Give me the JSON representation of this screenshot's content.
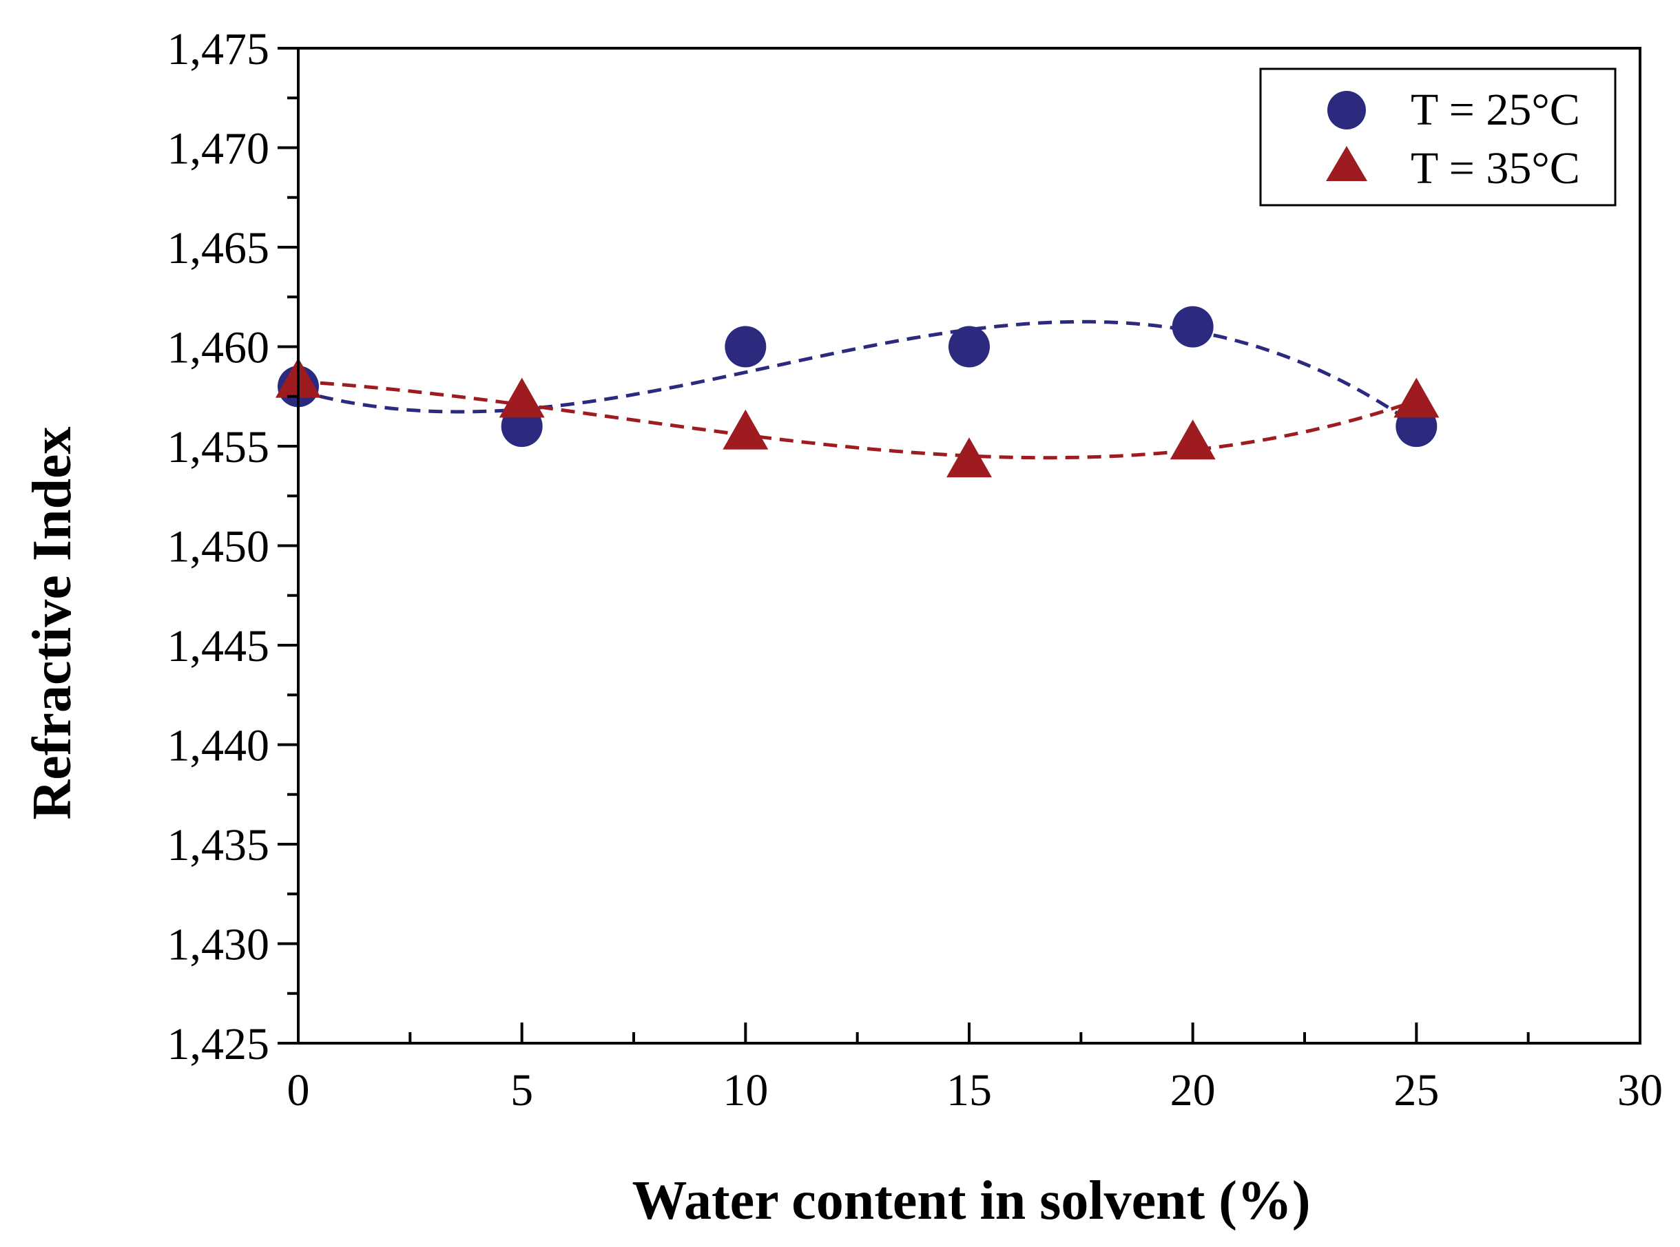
{
  "chart_data": {
    "type": "scatter",
    "title": "",
    "xlabel": "Water content in solvent (%)",
    "ylabel": "Refractive Index",
    "xlim": [
      0,
      30
    ],
    "ylim": [
      1.425,
      1.475
    ],
    "x_ticks": [
      0,
      5,
      10,
      15,
      20,
      25,
      30
    ],
    "x_tick_labels": [
      "0",
      "5",
      "10",
      "15",
      "20",
      "25",
      "30"
    ],
    "y_ticks": [
      1.425,
      1.43,
      1.435,
      1.44,
      1.445,
      1.45,
      1.455,
      1.46,
      1.465,
      1.47,
      1.475
    ],
    "y_tick_labels": [
      "1,425",
      "1,430",
      "1,435",
      "1,440",
      "1,445",
      "1,450",
      "1,455",
      "1,460",
      "1,465",
      "1,470",
      "1,475"
    ],
    "grid": false,
    "legend_position": "top-right",
    "series": [
      {
        "name": "T = 25°C",
        "marker": "circle",
        "color": "#2b2a7e",
        "x": [
          0,
          5,
          10,
          15,
          20,
          25
        ],
        "y": [
          1.458,
          1.456,
          1.46,
          1.46,
          1.461,
          1.456
        ],
        "fit": "dashed polynomial"
      },
      {
        "name": "T = 35°C",
        "marker": "triangle",
        "color": "#9e1c20",
        "x": [
          0,
          5,
          10,
          15,
          20,
          25
        ],
        "y": [
          1.4582,
          1.4572,
          1.4556,
          1.4542,
          1.4551,
          1.4572
        ],
        "fit": "dashed polynomial"
      }
    ]
  }
}
